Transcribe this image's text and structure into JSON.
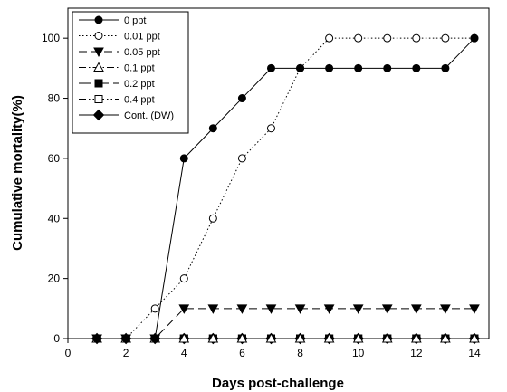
{
  "chart_data": {
    "type": "line",
    "xlabel": "Days post-challenge",
    "ylabel": "Cumulative mortality(%)",
    "xlim": [
      0,
      14.5
    ],
    "ylim": [
      0,
      110
    ],
    "x_ticks": [
      0,
      2,
      4,
      6,
      8,
      10,
      12,
      14
    ],
    "y_ticks": [
      0,
      20,
      40,
      60,
      80,
      100
    ],
    "grid": false,
    "legend_position": "top-left",
    "series": [
      {
        "name": "0 ppt",
        "marker": "circle",
        "fill": "#000000",
        "dash": "solid",
        "x": [
          1,
          2,
          3,
          4,
          5,
          6,
          7,
          8,
          9,
          10,
          11,
          12,
          13,
          14
        ],
        "y": [
          0,
          0,
          0,
          60,
          70,
          80,
          90,
          90,
          90,
          90,
          90,
          90,
          90,
          100
        ]
      },
      {
        "name": "0.01 ppt",
        "marker": "circle",
        "fill": "#ffffff",
        "dash": "dotted",
        "x": [
          1,
          2,
          3,
          4,
          5,
          6,
          7,
          8,
          9,
          10,
          11,
          12,
          13,
          14
        ],
        "y": [
          0,
          0,
          10,
          20,
          40,
          60,
          70,
          90,
          100,
          100,
          100,
          100,
          100,
          100
        ]
      },
      {
        "name": "0.05 ppt",
        "marker": "triangle-down",
        "fill": "#000000",
        "dash": "dashed",
        "x": [
          1,
          2,
          3,
          4,
          5,
          6,
          7,
          8,
          9,
          10,
          11,
          12,
          13,
          14
        ],
        "y": [
          0,
          0,
          0,
          10,
          10,
          10,
          10,
          10,
          10,
          10,
          10,
          10,
          10,
          10
        ]
      },
      {
        "name": "0.1 ppt",
        "marker": "triangle-up",
        "fill": "#ffffff",
        "dash": "dashdot",
        "x": [
          1,
          2,
          3,
          4,
          5,
          6,
          7,
          8,
          9,
          10,
          11,
          12,
          13,
          14
        ],
        "y": [
          0,
          0,
          0,
          0,
          0,
          0,
          0,
          0,
          0,
          0,
          0,
          0,
          0,
          0
        ]
      },
      {
        "name": "0.2 ppt",
        "marker": "square",
        "fill": "#000000",
        "dash": "longdash",
        "x": [
          1,
          2,
          3,
          4,
          5,
          6,
          7,
          8,
          9,
          10,
          11,
          12,
          13,
          14
        ],
        "y": [
          0,
          0,
          0,
          0,
          0,
          0,
          0,
          0,
          0,
          0,
          0,
          0,
          0,
          0
        ]
      },
      {
        "name": "0.4 ppt",
        "marker": "square",
        "fill": "#ffffff",
        "dash": "dashdotdot",
        "x": [
          1,
          2,
          3,
          4,
          5,
          6,
          7,
          8,
          9,
          10,
          11,
          12,
          13,
          14
        ],
        "y": [
          0,
          0,
          0,
          0,
          0,
          0,
          0,
          0,
          0,
          0,
          0,
          0,
          0,
          0
        ]
      },
      {
        "name": "Cont. (DW)",
        "marker": "diamond",
        "fill": "#000000",
        "dash": "solid",
        "x": [
          1,
          2,
          3,
          4,
          5,
          6,
          7,
          8,
          9,
          10,
          11,
          12,
          13,
          14
        ],
        "y": [
          0,
          0,
          0,
          0,
          0,
          0,
          0,
          0,
          0,
          0,
          0,
          0,
          0,
          0
        ]
      }
    ]
  }
}
